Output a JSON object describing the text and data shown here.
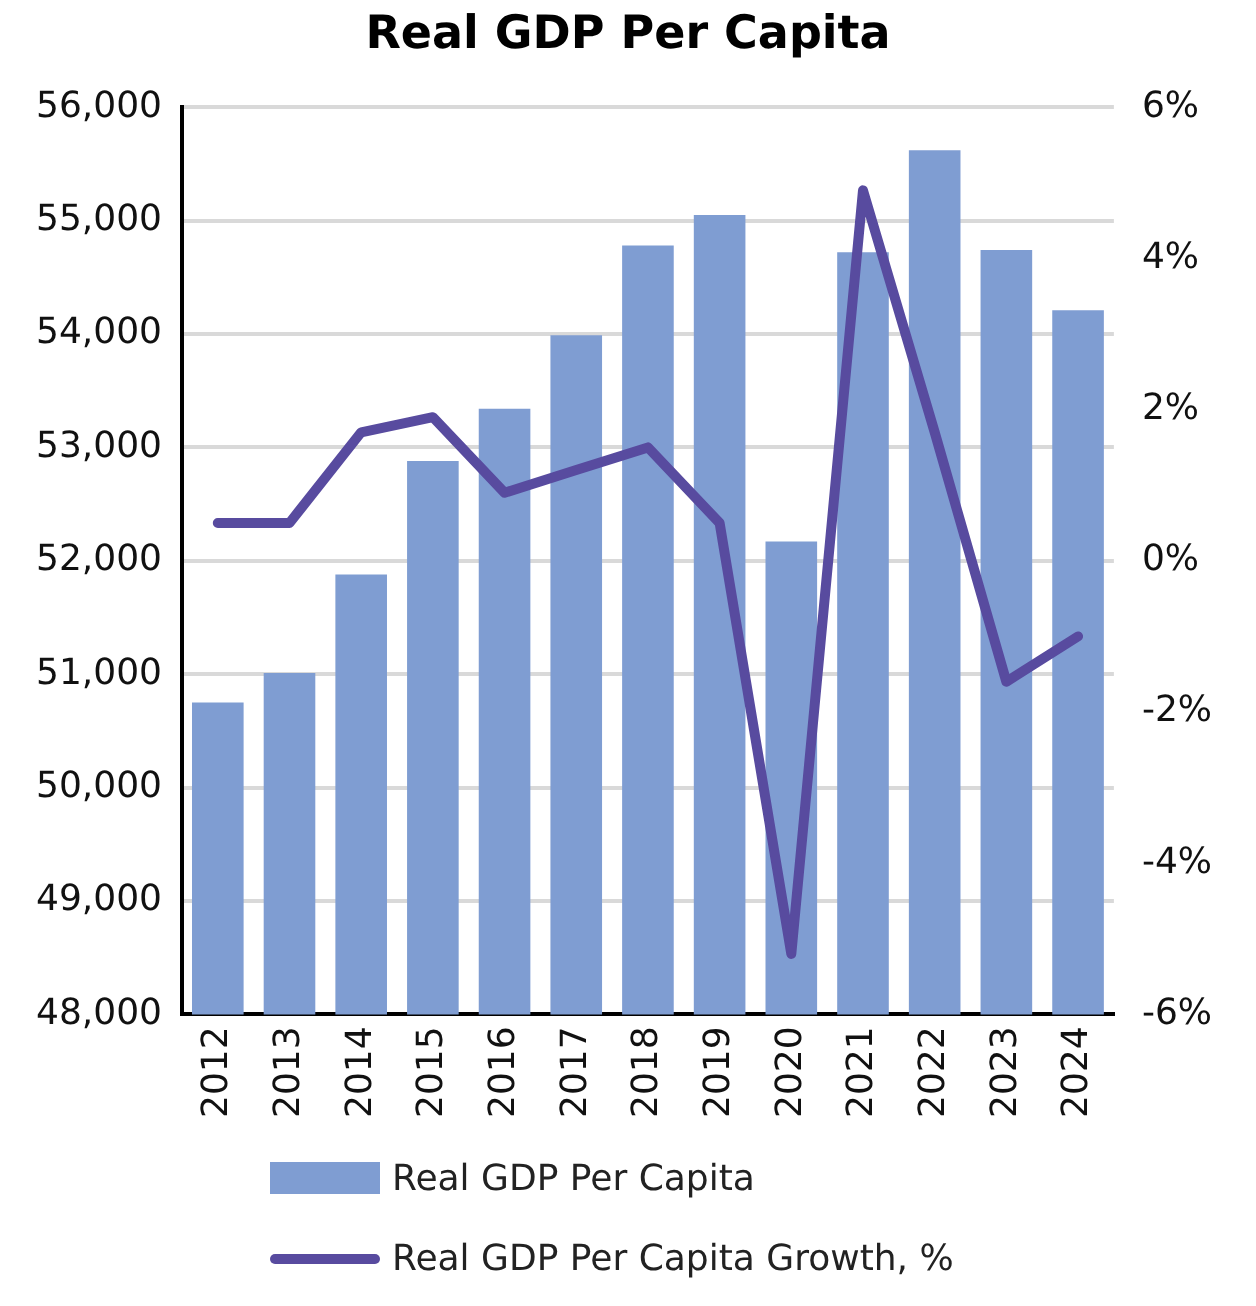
{
  "chart_data": {
    "type": "bar",
    "title": "Real GDP Per Capita",
    "categories": [
      "2012",
      "2013",
      "2014",
      "2015",
      "2016",
      "2017",
      "2018",
      "2019",
      "2020",
      "2021",
      "2022",
      "2023",
      "2024"
    ],
    "series": [
      {
        "name": "Real GDP Per Capita",
        "color": "#7f9dd2",
        "values": [
          50750,
          51010,
          51880,
          52880,
          53340,
          53990,
          54780,
          55050,
          52170,
          54720,
          55620,
          54740,
          54210
        ]
      },
      {
        "name": "Real GDP Per Capita Growth, %",
        "type": "line",
        "axis": "y2",
        "color": "#584b9f",
        "values": [
          0.5,
          0.5,
          1.7,
          1.9,
          0.9,
          1.2,
          1.5,
          0.5,
          -5.2,
          4.9,
          1.7,
          -1.6,
          -1.0
        ]
      }
    ],
    "ylim": [
      48000,
      56000
    ],
    "yticks": [
      {
        "value": 48000,
        "label": "48,000"
      },
      {
        "value": 49000,
        "label": "49,000"
      },
      {
        "value": 50000,
        "label": "50,000"
      },
      {
        "value": 51000,
        "label": "51,000"
      },
      {
        "value": 52000,
        "label": "52,000"
      },
      {
        "value": 53000,
        "label": "53,000"
      },
      {
        "value": 54000,
        "label": "54,000"
      },
      {
        "value": 55000,
        "label": "55,000"
      },
      {
        "value": 56000,
        "label": "56,000"
      }
    ],
    "y2lim": [
      -6,
      6
    ],
    "y2ticks": [
      {
        "value": -6,
        "label": "-6%"
      },
      {
        "value": -4,
        "label": "-4%"
      },
      {
        "value": -2,
        "label": "-2%"
      },
      {
        "value": 0,
        "label": "0%"
      },
      {
        "value": 2,
        "label": "2%"
      },
      {
        "value": 4,
        "label": "4%"
      },
      {
        "value": 6,
        "label": "6%"
      }
    ],
    "grid": "y",
    "legend": "bottom",
    "marker": "none"
  }
}
